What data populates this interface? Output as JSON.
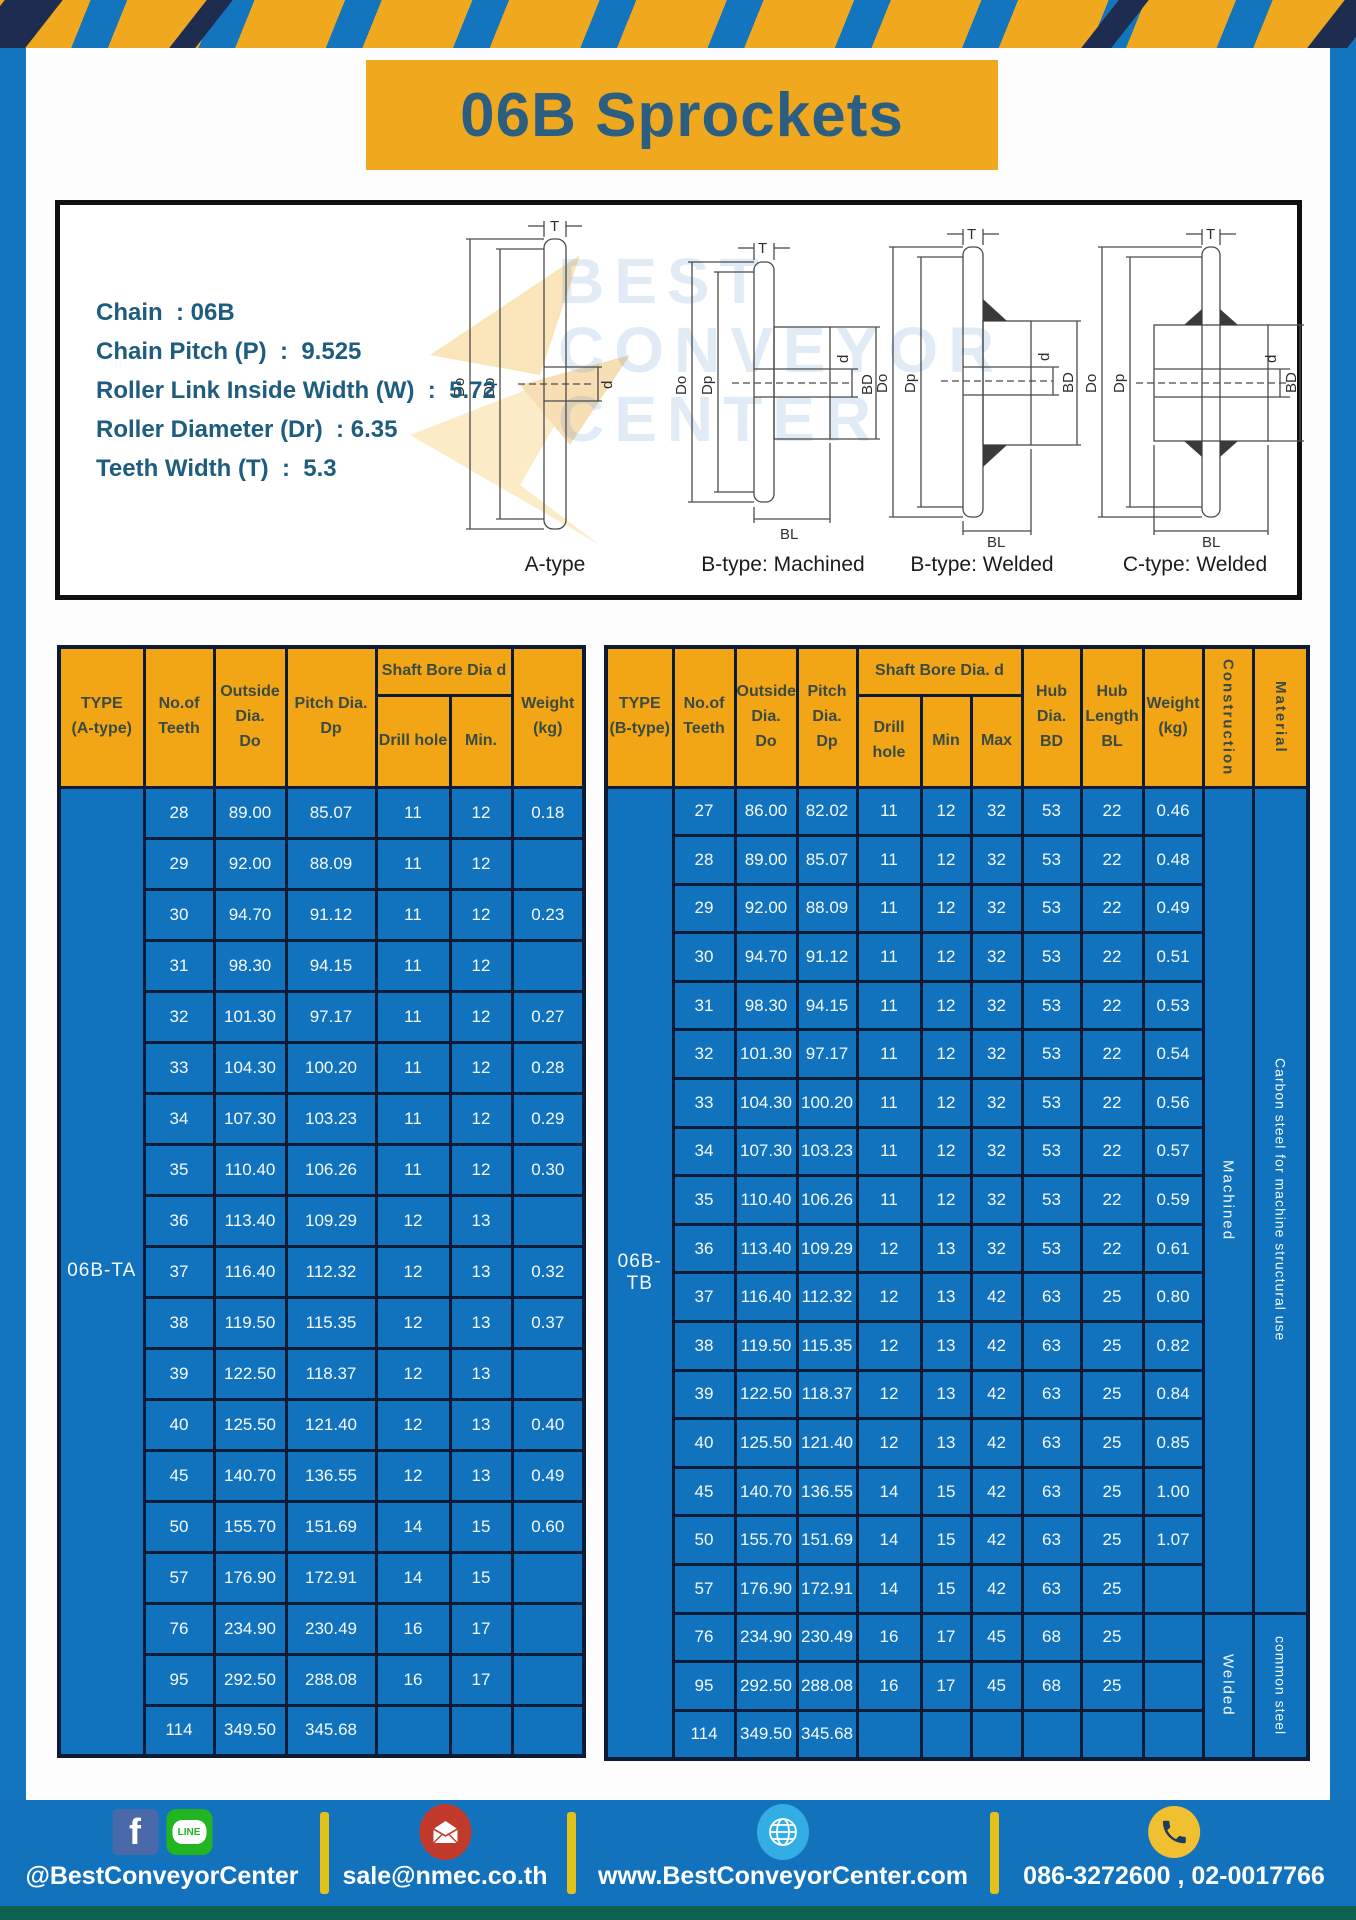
{
  "page": {
    "title": "06B Sprockets"
  },
  "colors": {
    "frame_blue": "#1475BF",
    "accent_yellow": "#F0A81E",
    "navy": "#1E2C50",
    "table_blue": "#1173BE",
    "border_navy": "#0C1C36",
    "header_yellow": "#F2A616",
    "title_text": "#2B5E80",
    "footer_blue": "#1272BC",
    "footer_strip_teal": "#0E6050",
    "divider_yellow": "#E2C118"
  },
  "specs": {
    "lines": [
      "Chain  : 06B",
      "Chain Pitch (P)  :  9.525",
      "Roller Link Inside Width (W)  :  5.72",
      "Roller Diameter (Dr)  : 6.35",
      "Teeth Width (T)  :  5.3"
    ]
  },
  "watermark": {
    "text": "BEST\nCONVEYOR\nCENTER"
  },
  "diagrams": {
    "labels": {
      "t": "T",
      "doo": "Do",
      "dp": "Dp",
      "d": "d",
      "bd": "BD",
      "bl": "BL"
    },
    "captions": [
      "A-type",
      "B-type: Machined",
      "B-type: Welded",
      "C-type: Welded"
    ]
  },
  "table_a": {
    "header": {
      "type": "TYPE\n(A-type)",
      "teeth": "No.of\nTeeth",
      "outside": "Outside\nDia.\nDo",
      "pitch": "Pitch Dia.\nDp",
      "shaft_group": "Shaft Bore Dia d",
      "drill": "Drill hole",
      "min": "Min.",
      "weight": "Weight\n(kg)"
    },
    "merges": [
      {
        "row": 0,
        "span": 19,
        "label": "06B-TA",
        "name": "type-cell",
        "pos": "start",
        "cls": "type-cell"
      }
    ],
    "rows": [
      [
        "28",
        "89.00",
        "85.07",
        "11",
        "12",
        "0.18"
      ],
      [
        "29",
        "92.00",
        "88.09",
        "11",
        "12",
        ""
      ],
      [
        "30",
        "94.70",
        "91.12",
        "11",
        "12",
        "0.23"
      ],
      [
        "31",
        "98.30",
        "94.15",
        "11",
        "12",
        ""
      ],
      [
        "32",
        "101.30",
        "97.17",
        "11",
        "12",
        "0.27"
      ],
      [
        "33",
        "104.30",
        "100.20",
        "11",
        "12",
        "0.28"
      ],
      [
        "34",
        "107.30",
        "103.23",
        "11",
        "12",
        "0.29"
      ],
      [
        "35",
        "110.40",
        "106.26",
        "11",
        "12",
        "0.30"
      ],
      [
        "36",
        "113.40",
        "109.29",
        "12",
        "13",
        ""
      ],
      [
        "37",
        "116.40",
        "112.32",
        "12",
        "13",
        "0.32"
      ],
      [
        "38",
        "119.50",
        "115.35",
        "12",
        "13",
        "0.37"
      ],
      [
        "39",
        "122.50",
        "118.37",
        "12",
        "13",
        ""
      ],
      [
        "40",
        "125.50",
        "121.40",
        "12",
        "13",
        "0.40"
      ],
      [
        "45",
        "140.70",
        "136.55",
        "12",
        "13",
        "0.49"
      ],
      [
        "50",
        "155.70",
        "151.69",
        "14",
        "15",
        "0.60"
      ],
      [
        "57",
        "176.90",
        "172.91",
        "14",
        "15",
        ""
      ],
      [
        "76",
        "234.90",
        "230.49",
        "16",
        "17",
        ""
      ],
      [
        "95",
        "292.50",
        "288.08",
        "16",
        "17",
        ""
      ],
      [
        "114",
        "349.50",
        "345.68",
        "",
        "",
        ""
      ]
    ]
  },
  "table_b": {
    "header": {
      "type": "TYPE\n(B-type)",
      "teeth": "No.of\nTeeth",
      "outside": "Outside\nDia.\nDo",
      "pitch": "Pitch\nDia.\nDp",
      "shaft_group": "Shaft Bore Dia. d",
      "drill": "Drill hole",
      "min": "Min",
      "max": "Max",
      "hub_dia": "Hub\nDia.\nBD",
      "hub_len": "Hub\nLength\nBL",
      "weight": "Weight\n(kg)",
      "construction": "Construction",
      "material": "Material"
    },
    "merges": [
      {
        "row": 0,
        "span": 20,
        "label": "06B-TB",
        "name": "type-cell",
        "pos": "start",
        "cls": "type-cell"
      },
      {
        "row": 0,
        "span": 17,
        "label": "Machined",
        "name": "construction-cell",
        "pos": "end",
        "cls": "vertical construction-cell"
      },
      {
        "row": 0,
        "span": 17,
        "label": "Carbon steel for machine structural use",
        "name": "material-cell",
        "pos": "end",
        "cls": "vertical material-cell"
      },
      {
        "row": 17,
        "span": 3,
        "label": "Welded",
        "name": "construction-cell",
        "pos": "end",
        "cls": "vertical construction-cell"
      },
      {
        "row": 17,
        "span": 3,
        "label": "common steel",
        "name": "material-cell",
        "pos": "end",
        "cls": "vertical material-cell"
      }
    ],
    "rows": [
      [
        "27",
        "86.00",
        "82.02",
        "11",
        "12",
        "32",
        "53",
        "22",
        "0.46"
      ],
      [
        "28",
        "89.00",
        "85.07",
        "11",
        "12",
        "32",
        "53",
        "22",
        "0.48"
      ],
      [
        "29",
        "92.00",
        "88.09",
        "11",
        "12",
        "32",
        "53",
        "22",
        "0.49"
      ],
      [
        "30",
        "94.70",
        "91.12",
        "11",
        "12",
        "32",
        "53",
        "22",
        "0.51"
      ],
      [
        "31",
        "98.30",
        "94.15",
        "11",
        "12",
        "32",
        "53",
        "22",
        "0.53"
      ],
      [
        "32",
        "101.30",
        "97.17",
        "11",
        "12",
        "32",
        "53",
        "22",
        "0.54"
      ],
      [
        "33",
        "104.30",
        "100.20",
        "11",
        "12",
        "32",
        "53",
        "22",
        "0.56"
      ],
      [
        "34",
        "107.30",
        "103.23",
        "11",
        "12",
        "32",
        "53",
        "22",
        "0.57"
      ],
      [
        "35",
        "110.40",
        "106.26",
        "11",
        "12",
        "32",
        "53",
        "22",
        "0.59"
      ],
      [
        "36",
        "113.40",
        "109.29",
        "12",
        "13",
        "32",
        "53",
        "22",
        "0.61"
      ],
      [
        "37",
        "116.40",
        "112.32",
        "12",
        "13",
        "42",
        "63",
        "25",
        "0.80"
      ],
      [
        "38",
        "119.50",
        "115.35",
        "12",
        "13",
        "42",
        "63",
        "25",
        "0.82"
      ],
      [
        "39",
        "122.50",
        "118.37",
        "12",
        "13",
        "42",
        "63",
        "25",
        "0.84"
      ],
      [
        "40",
        "125.50",
        "121.40",
        "12",
        "13",
        "42",
        "63",
        "25",
        "0.85"
      ],
      [
        "45",
        "140.70",
        "136.55",
        "14",
        "15",
        "42",
        "63",
        "25",
        "1.00"
      ],
      [
        "50",
        "155.70",
        "151.69",
        "14",
        "15",
        "42",
        "63",
        "25",
        "1.07"
      ],
      [
        "57",
        "176.90",
        "172.91",
        "14",
        "15",
        "42",
        "63",
        "25",
        ""
      ],
      [
        "76",
        "234.90",
        "230.49",
        "16",
        "17",
        "45",
        "68",
        "25",
        ""
      ],
      [
        "95",
        "292.50",
        "288.08",
        "16",
        "17",
        "45",
        "68",
        "25",
        ""
      ],
      [
        "114",
        "349.50",
        "345.68",
        "",
        "",
        "",
        "",
        "",
        ""
      ]
    ]
  },
  "footer": {
    "facebook_glyph": "f",
    "line_label": "LINE",
    "items": [
      {
        "text": "@BestConveyorCenter"
      },
      {
        "text": "sale@nmec.co.th"
      },
      {
        "text": "www.BestConveyorCenter.com"
      },
      {
        "text": "086-3272600 , 02-0017766"
      }
    ]
  }
}
